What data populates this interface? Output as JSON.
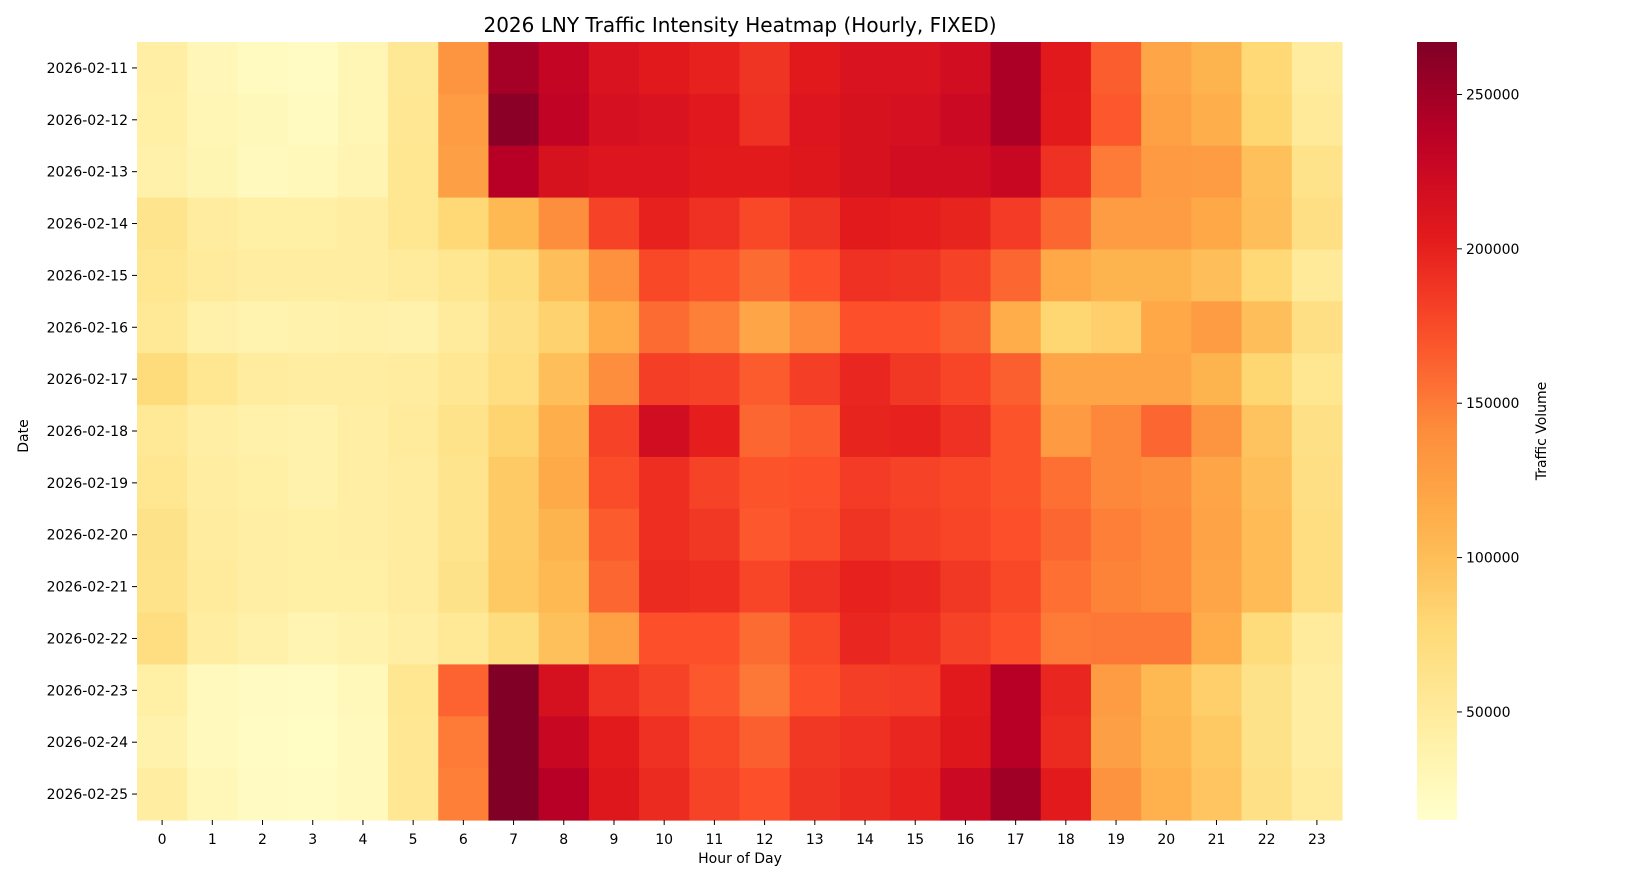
{
  "chart_data": {
    "type": "heatmap",
    "title": "2026 LNY Traffic Intensity Heatmap (Hourly, FIXED)",
    "xlabel": "Hour of Day",
    "ylabel": "Date",
    "colorbar_label": "Traffic Volume",
    "colormap": "YlOrRd",
    "color_range": [
      15000,
      267000
    ],
    "colorbar_ticks": [
      50000,
      100000,
      150000,
      200000,
      250000
    ],
    "x": [
      "0",
      "1",
      "2",
      "3",
      "4",
      "5",
      "6",
      "7",
      "8",
      "9",
      "10",
      "11",
      "12",
      "13",
      "14",
      "15",
      "16",
      "17",
      "18",
      "19",
      "20",
      "21",
      "22",
      "23"
    ],
    "y": [
      "2026-02-11",
      "2026-02-12",
      "2026-02-13",
      "2026-02-14",
      "2026-02-15",
      "2026-02-16",
      "2026-02-17",
      "2026-02-18",
      "2026-02-19",
      "2026-02-20",
      "2026-02-21",
      "2026-02-22",
      "2026-02-23",
      "2026-02-24",
      "2026-02-25"
    ],
    "values": [
      [
        44000,
        30000,
        24000,
        22000,
        32000,
        55000,
        135000,
        248000,
        230000,
        212000,
        205000,
        200000,
        188000,
        205000,
        212000,
        212000,
        220000,
        244000,
        205000,
        165000,
        120000,
        108000,
        78000,
        48000
      ],
      [
        42000,
        32000,
        27000,
        24000,
        32000,
        56000,
        128000,
        262000,
        232000,
        216000,
        212000,
        206000,
        190000,
        210000,
        214000,
        216000,
        224000,
        244000,
        204000,
        168000,
        124000,
        112000,
        80000,
        52000
      ],
      [
        40000,
        33000,
        25000,
        28000,
        34000,
        58000,
        126000,
        238000,
        214000,
        210000,
        210000,
        204000,
        204000,
        208000,
        214000,
        220000,
        220000,
        226000,
        190000,
        150000,
        130000,
        128000,
        98000,
        62000
      ],
      [
        60000,
        48000,
        42000,
        42000,
        46000,
        58000,
        78000,
        104000,
        140000,
        180000,
        200000,
        190000,
        176000,
        188000,
        204000,
        202000,
        198000,
        184000,
        160000,
        128000,
        128000,
        118000,
        100000,
        68000
      ],
      [
        58000,
        50000,
        45000,
        45000,
        46000,
        50000,
        58000,
        72000,
        100000,
        138000,
        176000,
        170000,
        158000,
        172000,
        190000,
        188000,
        180000,
        160000,
        118000,
        108000,
        108000,
        100000,
        78000,
        52000
      ],
      [
        54000,
        40000,
        36000,
        38000,
        40000,
        38000,
        50000,
        66000,
        84000,
        114000,
        158000,
        148000,
        120000,
        142000,
        172000,
        172000,
        164000,
        114000,
        80000,
        86000,
        118000,
        128000,
        100000,
        68000
      ],
      [
        74000,
        58000,
        48000,
        46000,
        46000,
        48000,
        56000,
        70000,
        100000,
        140000,
        182000,
        180000,
        166000,
        182000,
        196000,
        186000,
        178000,
        164000,
        120000,
        120000,
        120000,
        108000,
        80000,
        58000
      ],
      [
        54000,
        44000,
        40000,
        38000,
        44000,
        50000,
        62000,
        82000,
        112000,
        180000,
        220000,
        202000,
        160000,
        166000,
        198000,
        200000,
        190000,
        170000,
        130000,
        144000,
        160000,
        134000,
        96000,
        66000
      ],
      [
        58000,
        46000,
        42000,
        38000,
        44000,
        48000,
        60000,
        90000,
        116000,
        174000,
        192000,
        180000,
        170000,
        172000,
        184000,
        180000,
        176000,
        170000,
        156000,
        144000,
        140000,
        120000,
        100000,
        68000
      ],
      [
        64000,
        48000,
        44000,
        42000,
        44000,
        48000,
        60000,
        90000,
        108000,
        166000,
        192000,
        186000,
        168000,
        174000,
        188000,
        182000,
        178000,
        172000,
        160000,
        148000,
        142000,
        122000,
        102000,
        70000
      ],
      [
        62000,
        50000,
        44000,
        42000,
        42000,
        48000,
        64000,
        92000,
        104000,
        160000,
        194000,
        192000,
        178000,
        190000,
        200000,
        196000,
        186000,
        176000,
        156000,
        146000,
        142000,
        120000,
        102000,
        70000
      ],
      [
        70000,
        46000,
        40000,
        34000,
        38000,
        44000,
        54000,
        72000,
        98000,
        124000,
        172000,
        172000,
        158000,
        176000,
        196000,
        192000,
        180000,
        172000,
        150000,
        152000,
        152000,
        114000,
        74000,
        50000
      ],
      [
        42000,
        25000,
        23000,
        22000,
        28000,
        58000,
        162000,
        267000,
        215000,
        190000,
        180000,
        168000,
        152000,
        172000,
        182000,
        184000,
        205000,
        238000,
        196000,
        128000,
        104000,
        86000,
        64000,
        46000
      ],
      [
        38000,
        25000,
        22000,
        21000,
        26000,
        56000,
        150000,
        267000,
        226000,
        204000,
        190000,
        176000,
        164000,
        186000,
        190000,
        196000,
        208000,
        238000,
        194000,
        126000,
        106000,
        92000,
        64000,
        46000
      ],
      [
        46000,
        29000,
        23000,
        22000,
        25000,
        56000,
        148000,
        267000,
        238000,
        208000,
        194000,
        180000,
        172000,
        188000,
        194000,
        200000,
        224000,
        250000,
        204000,
        136000,
        110000,
        94000,
        66000,
        50000
      ]
    ]
  }
}
